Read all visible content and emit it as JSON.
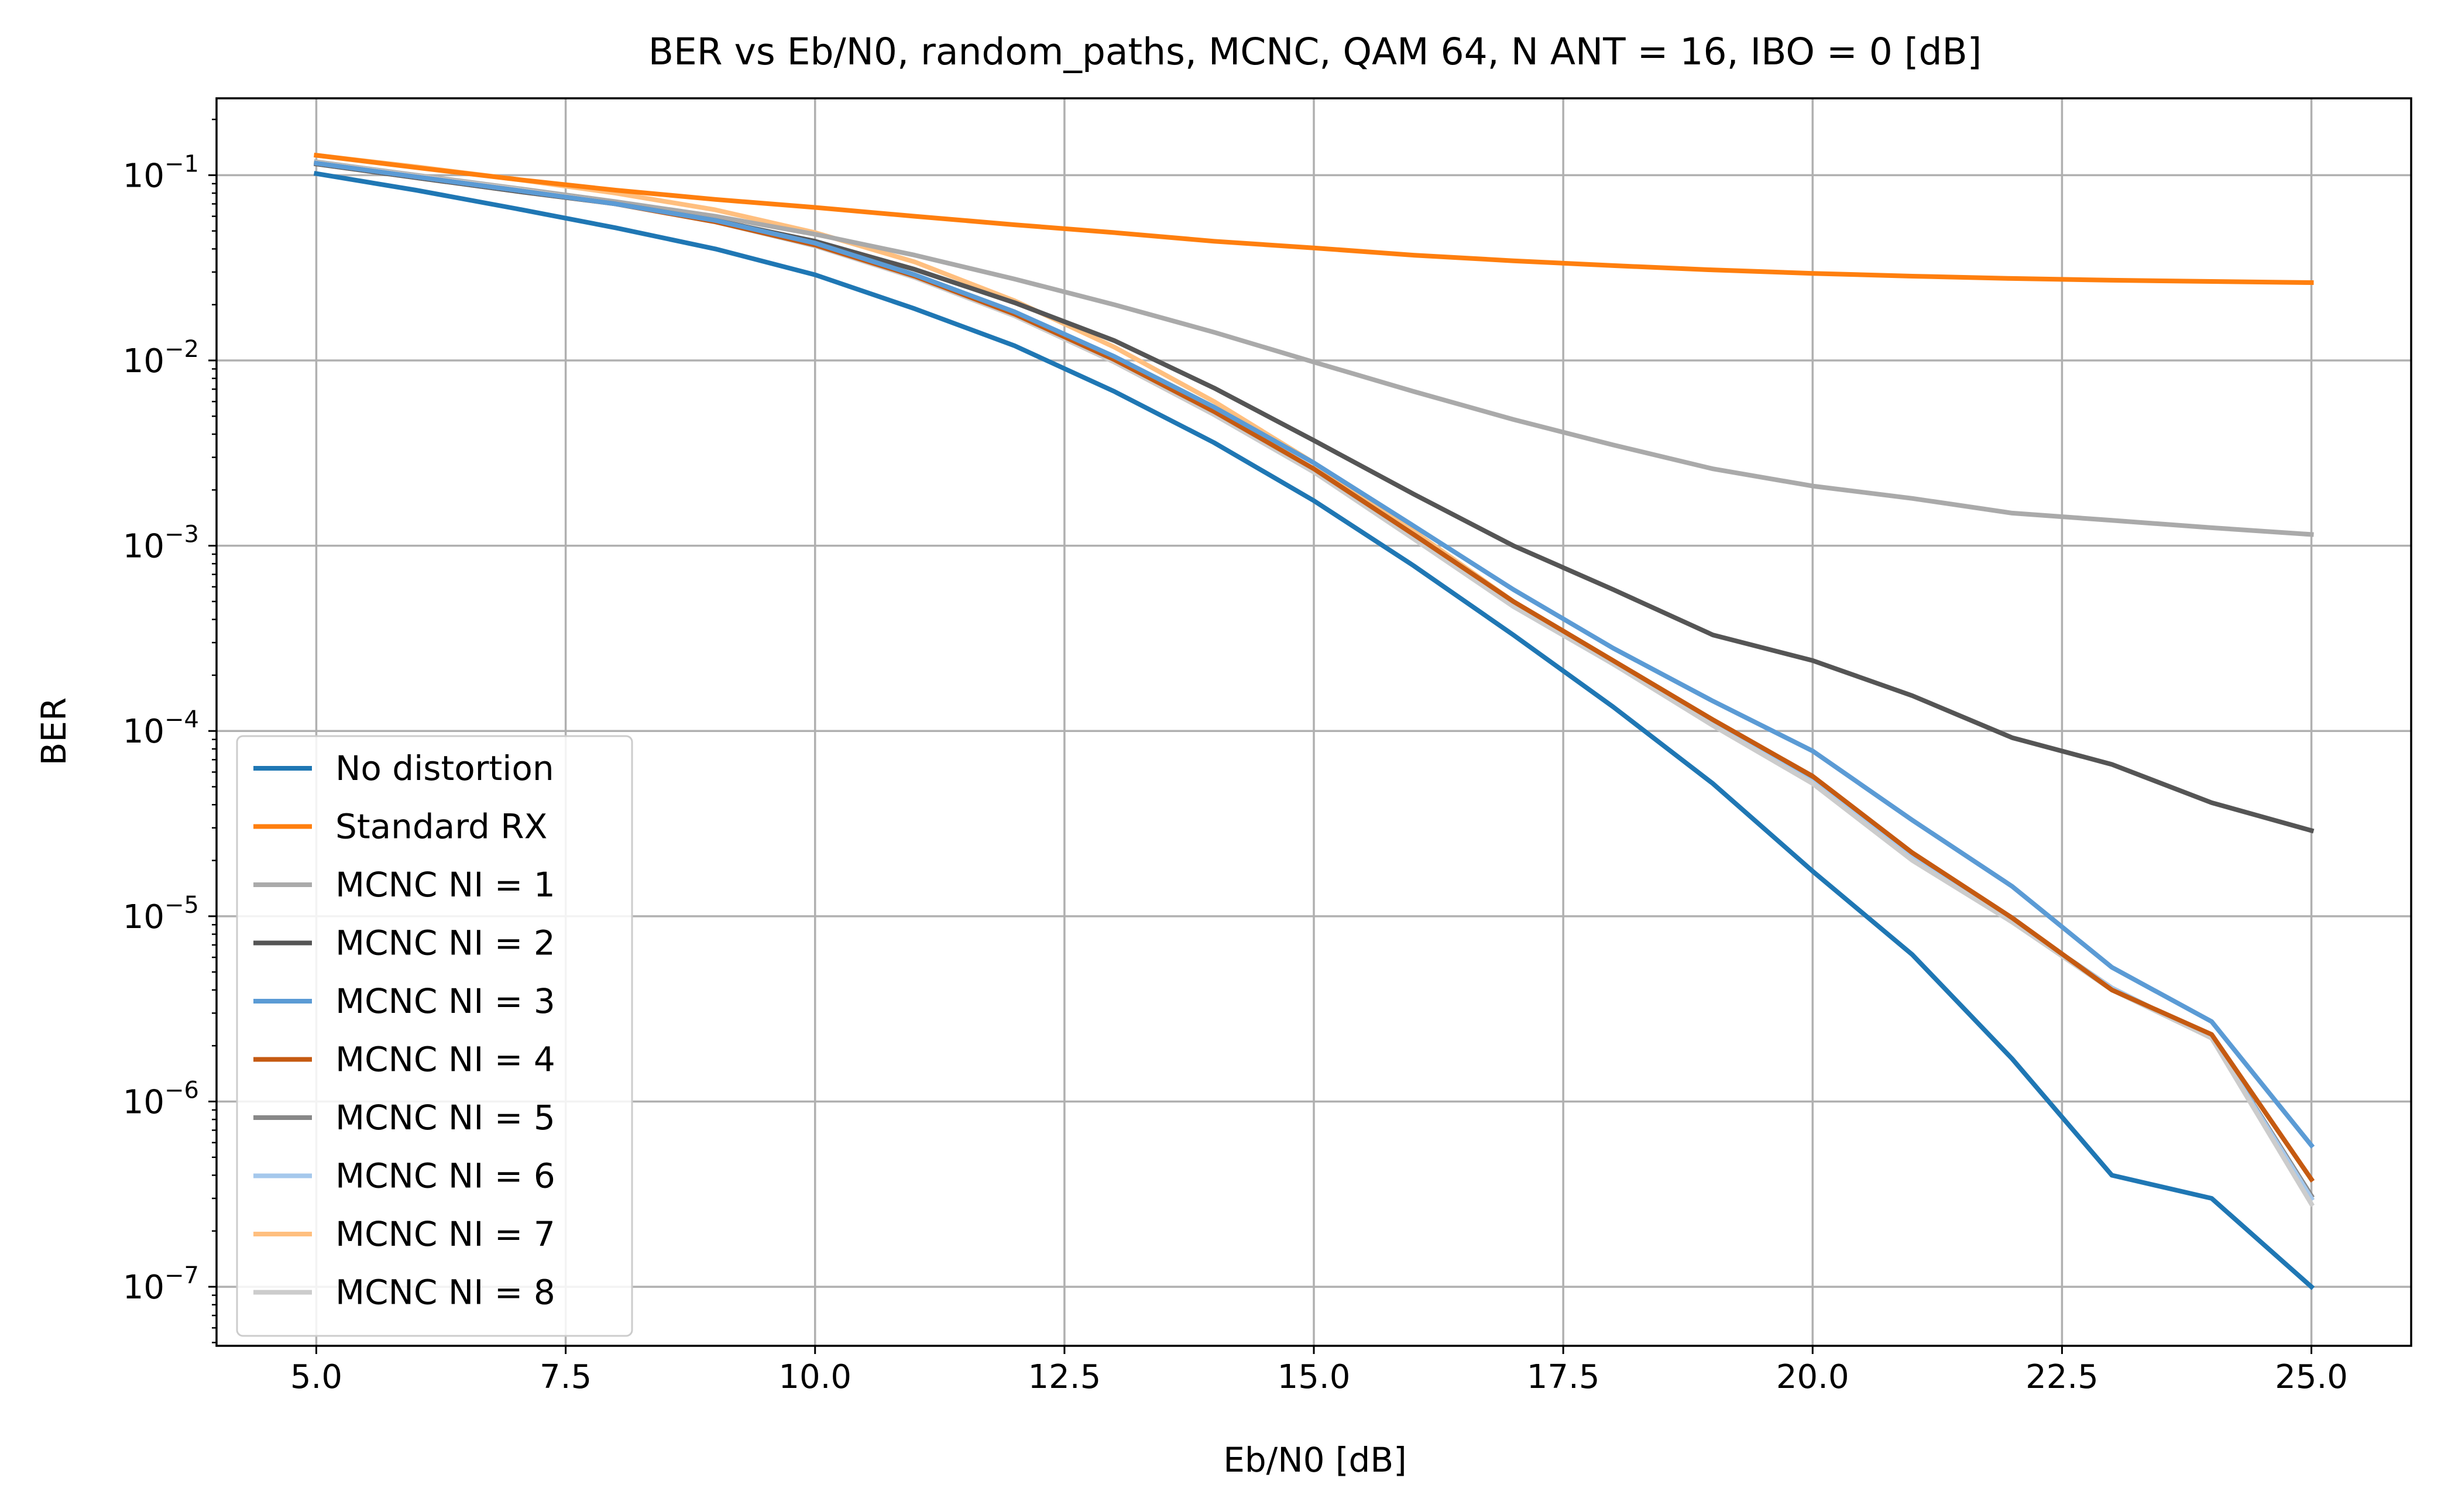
{
  "chart_data": {
    "type": "line",
    "title": "BER vs Eb/N0, random_paths, MCNC, QAM 64, N ANT = 16, IBO = 0 [dB]",
    "xlabel": "Eb/N0 [dB]",
    "ylabel": "BER",
    "yscale": "log",
    "xlim": [
      4.0,
      26.0
    ],
    "ylim": [
      4.8e-08,
      0.26
    ],
    "x_ticks": [
      5.0,
      7.5,
      10.0,
      12.5,
      15.0,
      17.5,
      20.0,
      22.5,
      25.0
    ],
    "x_tick_labels": [
      "5.0",
      "7.5",
      "10.0",
      "12.5",
      "15.0",
      "17.5",
      "20.0",
      "22.5",
      "25.0"
    ],
    "y_ticks": [
      -1,
      -2,
      -3,
      -4,
      -5,
      -6,
      -7
    ],
    "grid": true,
    "legend_position": "lower-left",
    "x": [
      5,
      6,
      7,
      8,
      9,
      10,
      11,
      12,
      13,
      14,
      15,
      16,
      17,
      18,
      19,
      20,
      21,
      22,
      23,
      24,
      25
    ],
    "series": [
      {
        "name": "No distortion",
        "color": "#1f77b4",
        "z": 11,
        "values": [
          0.102,
          0.083,
          0.066,
          0.052,
          0.04,
          0.029,
          0.019,
          0.012,
          0.0068,
          0.0036,
          0.00175,
          0.00078,
          0.00033,
          0.000135,
          5.2e-05,
          1.75e-05,
          6.2e-06,
          1.7e-06,
          4e-07,
          3e-07,
          1e-07
        ]
      },
      {
        "name": "Standard RX",
        "color": "#ff7f0e",
        "z": 10,
        "values": [
          0.128,
          0.11,
          0.095,
          0.083,
          0.074,
          0.067,
          0.06,
          0.054,
          0.049,
          0.044,
          0.0405,
          0.037,
          0.0345,
          0.0325,
          0.0308,
          0.0295,
          0.0285,
          0.0277,
          0.0271,
          0.0267,
          0.0263
        ]
      },
      {
        "name": "MCNC NI = 1",
        "color": "#aaaaaa",
        "z": 3,
        "values": [
          0.118,
          0.1,
          0.085,
          0.072,
          0.06,
          0.048,
          0.037,
          0.0275,
          0.02,
          0.0142,
          0.0098,
          0.0068,
          0.0048,
          0.0035,
          0.0026,
          0.0021,
          0.0018,
          0.0015,
          0.00137,
          0.00125,
          0.00115
        ]
      },
      {
        "name": "MCNC NI = 2",
        "color": "#555555",
        "z": 4,
        "values": [
          0.115,
          0.097,
          0.082,
          0.07,
          0.057,
          0.044,
          0.031,
          0.0205,
          0.0128,
          0.0071,
          0.0037,
          0.0019,
          0.001,
          0.00058,
          0.00033,
          0.00024,
          0.000155,
          9.2e-05,
          6.6e-05,
          4.1e-05,
          2.9e-05
        ]
      },
      {
        "name": "MCNC NI = 3",
        "color": "#5b9bd5",
        "z": 9,
        "values": [
          0.116,
          0.098,
          0.083,
          0.07,
          0.057,
          0.043,
          0.029,
          0.0183,
          0.0105,
          0.0056,
          0.0028,
          0.00128,
          0.00058,
          0.00028,
          0.000145,
          7.8e-05,
          3.3e-05,
          1.45e-05,
          5.3e-06,
          2.7e-06,
          5.8e-07
        ]
      },
      {
        "name": "MCNC NI = 4",
        "color": "#c55a11",
        "z": 8,
        "values": [
          0.116,
          0.098,
          0.083,
          0.07,
          0.056,
          0.042,
          0.0285,
          0.0178,
          0.0101,
          0.0053,
          0.0026,
          0.00115,
          0.0005,
          0.00024,
          0.000115,
          5.7e-05,
          2.2e-05,
          9.8e-06,
          4e-06,
          2.3e-06,
          3.8e-07
        ]
      },
      {
        "name": "MCNC NI = 5",
        "color": "#888888",
        "z": 5,
        "values": [
          0.116,
          0.098,
          0.083,
          0.07,
          0.056,
          0.042,
          0.0283,
          0.0176,
          0.01,
          0.0052,
          0.0025,
          0.00112,
          0.00048,
          0.00023,
          0.00011,
          5.4e-05,
          2.1e-05,
          9.5e-06,
          4.1e-06,
          2.2e-06,
          3.1e-07
        ]
      },
      {
        "name": "MCNC NI = 6",
        "color": "#a5c8ec",
        "z": 6,
        "values": [
          0.116,
          0.098,
          0.083,
          0.07,
          0.056,
          0.042,
          0.0282,
          0.0175,
          0.0099,
          0.0051,
          0.0025,
          0.0011,
          0.00047,
          0.00023,
          0.000108,
          5.3e-05,
          2.05e-05,
          9.4e-06,
          4.1e-06,
          2.2e-06,
          3e-07
        ]
      },
      {
        "name": "MCNC NI = 7",
        "color": "#ffbf7f",
        "z": 2,
        "values": [
          0.128,
          0.111,
          0.095,
          0.08,
          0.065,
          0.049,
          0.034,
          0.021,
          0.0118,
          0.006,
          0.0028,
          0.0012,
          0.0005,
          0.00024,
          0.000112,
          5.4e-05,
          2.1e-05,
          9.5e-06,
          4.1e-06,
          2.2e-06,
          3e-07
        ]
      },
      {
        "name": "MCNC NI = 8",
        "color": "#cccccc",
        "z": 7,
        "values": [
          0.117,
          0.099,
          0.084,
          0.07,
          0.056,
          0.0415,
          0.028,
          0.0174,
          0.0098,
          0.0051,
          0.0025,
          0.00109,
          0.00047,
          0.00023,
          0.000107,
          5.2e-05,
          2e-05,
          9.3e-06,
          4e-06,
          2.2e-06,
          2.8e-07
        ]
      }
    ]
  }
}
